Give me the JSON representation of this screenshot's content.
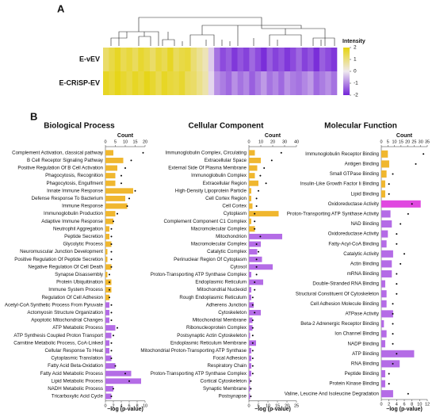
{
  "chart_data": [
    {
      "type": "heatmap",
      "panel": "A",
      "rows": [
        "E-vEV",
        "E-CRiSP-EV"
      ],
      "values": [
        [
          1.2,
          1.5,
          1.8,
          1.4,
          1.6,
          1.3,
          1.7,
          1.5,
          1.2,
          1.6,
          1.4,
          1.8,
          1.3,
          1.5,
          1.6,
          1.1,
          0.8,
          0.5,
          -0.3,
          -1.2,
          -1.6,
          -1.4,
          -1.8,
          -1.5,
          -1.7,
          -1.3,
          -1.6,
          -1.9,
          -1.4,
          -1.7,
          -1.5,
          -1.8,
          -1.6,
          -1.3,
          -1.7,
          -1.5,
          -1.9,
          -1.4,
          -1.6,
          -1.8
        ],
        [
          1.8,
          1.6,
          1.9,
          1.7,
          1.5,
          1.8,
          1.6,
          1.9,
          1.7,
          1.4,
          1.8,
          1.6,
          1.5,
          1.7,
          1.3,
          1.2,
          0.9,
          0.6,
          -0.2,
          -0.9,
          -1.1,
          -1.3,
          -0.9,
          -1.2,
          -1.0,
          -1.4,
          -1.1,
          -0.8,
          -1.2,
          -1.0,
          -1.3,
          -0.9,
          -1.1,
          -1.2,
          -1.0,
          -0.8,
          -1.3,
          -1.1,
          -0.9,
          -1.2
        ]
      ],
      "colorbar_title": "Intensity",
      "clim": [
        -2,
        2
      ],
      "colorbar_ticks": [
        2,
        1,
        0,
        -1,
        -2
      ],
      "colorscale": [
        "#7424d8",
        "#efe9ef",
        "#e6d40e"
      ]
    },
    {
      "type": "bar",
      "panel": "B",
      "title": "Biological Process",
      "categories": [
        "Complement Activation, classical pathway",
        "B Cell Receptor Signaling Pathway",
        "Positive Regulation Of B Cell Activation",
        "Phagocytosis, Recognition",
        "Phagocytosis, Engulfment",
        "Innate Immune Response",
        "Defense Response To Bacterium",
        "Immune Response",
        "Immunoglobulin Production",
        "Adaptive Immune Response",
        "Neutrophil Aggregation",
        "Peptide Secretion",
        "Glycolytic Process",
        "Neuromuscular Junction Development",
        "Positive Regulation Of Peptide Secretion",
        "Negative Regulation Of Cell Death",
        "Synapse Disassembly",
        "Protein Ubiquitination",
        "Immune System Process",
        "Regulation Of Cell Adhesion",
        "Acetyl-CoA Synthetic Process From Pyruvate",
        "Actomyosin Structure Organization",
        "Apoptotic Mitochondrial Changes",
        "ATP Metabolic Process",
        "ATP Synthesis Coupled Proton Transport",
        "Carnitine Metabolic Process, CoA-Linked",
        "Cellular Response To Heat",
        "Cytoplasmic Translation",
        "Fatty Acid Beta-Oxidation",
        "Fatty Acid Metabolic Process",
        "Lipid Metabolic Process",
        "NADH Metabolic Process",
        "Tricarboxylic Acid Cycle"
      ],
      "series": [
        {
          "name": "Count",
          "values": [
            4,
            9,
            6,
            5,
            5,
            14,
            10,
            11,
            5,
            4,
            2,
            2,
            3,
            1,
            1,
            3,
            1,
            3,
            3,
            2,
            2,
            2,
            2,
            5,
            3,
            2,
            2,
            3,
            5,
            13,
            18,
            4,
            3
          ],
          "colors": [
            "#f0b72f",
            "#f0b72f",
            "#f0b72f",
            "#f0b72f",
            "#f0b72f",
            "#f0b72f",
            "#f0b72f",
            "#f0b72f",
            "#f0b72f",
            "#f0b72f",
            "#f0b72f",
            "#f0b72f",
            "#f0b72f",
            "#f0b72f",
            "#f0b72f",
            "#f0b72f",
            "#f0b72f",
            "#f0b72f",
            "#f0b72f",
            "#f0b72f",
            "#b46ce6",
            "#b46ce6",
            "#b46ce6",
            "#b46ce6",
            "#b46ce6",
            "#b46ce6",
            "#b46ce6",
            "#b46ce6",
            "#b46ce6",
            "#b46ce6",
            "#b46ce6",
            "#b46ce6",
            "#b46ce6"
          ]
        },
        {
          "name": "−log (p-value)",
          "color": "#000000",
          "values": [
            9.5,
            6.5,
            5,
            4,
            4,
            7.5,
            6,
            5.5,
            3,
            2,
            1.5,
            1.5,
            1.5,
            1.5,
            1.5,
            1.5,
            1,
            1,
            1,
            1,
            1.5,
            1.5,
            1.5,
            3,
            2,
            1.5,
            1.5,
            1.5,
            2.5,
            5,
            6,
            2,
            1.5
          ]
        }
      ],
      "xlim": [
        0,
        20
      ],
      "xticks": [
        0,
        5,
        10,
        15,
        20
      ],
      "x2lim": [
        0,
        10
      ],
      "x2ticks": [
        0,
        2,
        4,
        6,
        8,
        10
      ]
    },
    {
      "type": "bar",
      "title": "Cellular Component",
      "categories": [
        "Immunoglobulin Complex, Circulating",
        "Extracellular Space",
        "External Side Of Plasma Membrane",
        "Immunoglobulin Complex",
        "Extracellular Region",
        "High-Density Lipoprotein Particle",
        "Cell Cortex Region",
        "Cell Cortex",
        "Cytoplasm",
        "Complement Component C1 Complex",
        "Macromolecular Complex",
        "Mitochondrion",
        "Macromolecular Complex",
        "Catalytic Complex",
        "Perinuclear Region Of Cytoplasm",
        "Cytosol",
        "Proton-Transporting ATP Synthase Complex",
        "Endoplasmic Reticulum",
        "Mitochondrial Nucleoid",
        "Rough Endoplasmic Reticulum",
        "Adherens Junction",
        "Cytoskeleton",
        "Mitochondrial Membrane",
        "Ribonucleoprotein Complex",
        "Postsynaptic Actin Cytoskeleton",
        "Endoplasmic Reticulum Membrane",
        "Mitochondrial Proton-Transporting ATP Synthase",
        "Focal Adhesion",
        "Respiratory Chain",
        "Proton-Transporting ATP Synthase Complex",
        "Cortical Cytoskeleton",
        "Synaptic Membrane",
        "Postsynapse"
      ],
      "series": [
        {
          "name": "Count",
          "values": [
            5,
            10,
            7,
            5,
            8,
            2,
            2,
            3,
            25,
            2,
            5,
            28,
            10,
            7,
            11,
            20,
            2,
            12,
            2,
            2,
            4,
            10,
            3,
            3,
            1,
            6,
            2,
            2,
            2,
            2,
            1,
            1,
            1
          ],
          "colors": [
            "#f0b72f",
            "#f0b72f",
            "#f0b72f",
            "#f0b72f",
            "#f0b72f",
            "#f0b72f",
            "#f0b72f",
            "#f0b72f",
            "#f0b72f",
            "#f0b72f",
            "#f0b72f",
            "#b46ce6",
            "#b46ce6",
            "#b46ce6",
            "#b46ce6",
            "#b46ce6",
            "#b46ce6",
            "#b46ce6",
            "#b46ce6",
            "#b46ce6",
            "#b46ce6",
            "#b46ce6",
            "#b46ce6",
            "#b46ce6",
            "#b46ce6",
            "#b46ce6",
            "#b46ce6",
            "#b46ce6",
            "#b46ce6",
            "#b46ce6",
            "#b46ce6",
            "#b46ce6",
            "#b46ce6"
          ]
        },
        {
          "name": "−log (p-value)",
          "color": "#000000",
          "values": [
            17,
            12,
            8,
            6,
            9,
            5,
            4,
            4,
            3,
            3,
            3,
            6,
            4,
            5,
            4,
            4,
            4,
            3,
            3,
            2,
            2,
            3,
            2,
            2,
            2,
            2,
            2,
            2,
            2,
            2,
            1,
            1,
            1
          ]
        }
      ],
      "xlim": [
        0,
        40
      ],
      "xticks": [
        0,
        10,
        20,
        30,
        40
      ],
      "x2lim": [
        0,
        25
      ],
      "x2ticks": [
        0,
        5,
        10,
        15,
        20,
        25
      ]
    },
    {
      "type": "bar",
      "title": "Molecular Function",
      "categories": [
        "Immunoglobulin Receptor Binding",
        "Antigen Binding",
        "Small GTPase Binding",
        "Insulin-Like Growth Factor Ii Binding",
        "Lipid Binding",
        "Oxidoreductase Activity",
        "Proton-Transporting ATP Synthase Activity",
        "NAD Binding",
        "Oxidoreductase Activity",
        "Fatty-Acyl-CoA Binding",
        "Catalytic Activity",
        "Actin Binding",
        "mRNA Binding",
        "Double-Stranded RNA Binding",
        "Structural Constituent Of Cytoskeleton",
        "Cell Adhesion Molecule Binding",
        "ATPase Activity",
        "Beta-2 Adrenergic Receptor Binding",
        "Ion Channel Binding",
        "NADP Binding",
        "ATP Binding",
        "RNA Binding",
        "Peptide Binding",
        "Protein Kinase Binding",
        "Valine, Leucine And Isoleucine Degradation"
      ],
      "series": [
        {
          "name": "Count",
          "values": [
            5,
            6,
            4,
            3,
            3,
            30,
            7,
            8,
            5,
            4,
            9,
            8,
            8,
            3,
            4,
            4,
            9,
            2,
            4,
            3,
            25,
            14,
            3,
            3,
            9
          ],
          "colors": [
            "#f0b72f",
            "#f0b72f",
            "#f0b72f",
            "#f0b72f",
            "#f0b72f",
            "#e048e0",
            "#b46ce6",
            "#b46ce6",
            "#b46ce6",
            "#b46ce6",
            "#b46ce6",
            "#b46ce6",
            "#b46ce6",
            "#b46ce6",
            "#b46ce6",
            "#b46ce6",
            "#b46ce6",
            "#b46ce6",
            "#b46ce6",
            "#b46ce6",
            "#b46ce6",
            "#b46ce6",
            "#b46ce6",
            "#b46ce6",
            "#b46ce6"
          ]
        },
        {
          "name": "−log (p-value)",
          "color": "#000000",
          "values": [
            11,
            9,
            3,
            2,
            2,
            8,
            7,
            5,
            4,
            4,
            6,
            5,
            4,
            4,
            4,
            3,
            3,
            3,
            3,
            3,
            4,
            3,
            2,
            2,
            7
          ]
        }
      ],
      "xlim": [
        0,
        35
      ],
      "xticks": [
        0,
        5,
        10,
        15,
        20,
        25,
        30,
        35
      ],
      "x2lim": [
        0,
        12
      ],
      "x2ticks": [
        0,
        2,
        4,
        6,
        8,
        10,
        12
      ]
    }
  ]
}
